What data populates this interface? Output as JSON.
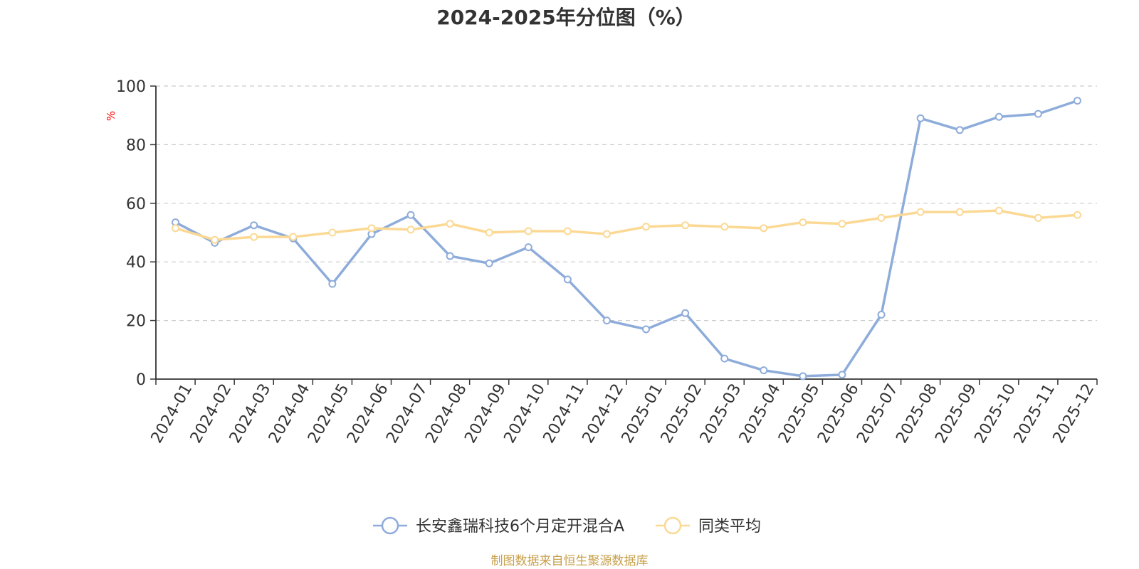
{
  "chart_data": {
    "type": "line",
    "title": "2024-2025年分位图（%）",
    "ylabel": "%",
    "xlabel": "",
    "ylim": [
      0,
      100
    ],
    "yticks": [
      0,
      20,
      40,
      60,
      80,
      100
    ],
    "grid": true,
    "legend_position": "bottom-center",
    "categories": [
      "2024-01",
      "2024-02",
      "2024-03",
      "2024-04",
      "2024-05",
      "2024-06",
      "2024-07",
      "2024-08",
      "2024-09",
      "2024-10",
      "2024-11",
      "2024-12",
      "2025-01",
      "2025-02",
      "2025-03",
      "2025-04",
      "2025-05",
      "2025-06",
      "2025-07",
      "2025-08",
      "2025-09",
      "2025-10",
      "2025-11",
      "2025-12"
    ],
    "series": [
      {
        "name": "长安鑫瑞科技6个月定开混合A",
        "color": "#8eacda",
        "values": [
          53.5,
          46.5,
          52.5,
          48.0,
          32.5,
          49.5,
          56.0,
          42.0,
          39.5,
          45.0,
          34.0,
          20.0,
          17.0,
          22.5,
          7.0,
          3.0,
          1.0,
          1.5,
          22.0,
          89.0,
          85.0,
          89.5,
          90.5,
          95.0
        ]
      },
      {
        "name": "同类平均",
        "color": "#fbd994",
        "values": [
          51.5,
          47.5,
          48.5,
          48.5,
          50.0,
          51.5,
          51.0,
          53.0,
          50.0,
          50.5,
          50.5,
          49.5,
          52.0,
          52.5,
          52.0,
          51.5,
          53.5,
          53.0,
          55.0,
          57.0,
          57.0,
          57.5,
          55.0,
          56.0
        ]
      }
    ],
    "footer": "制图数据来自恒生聚源数据库",
    "colors": {
      "axis": "#333333",
      "grid": "#cccccc",
      "ylabel": "#ff0000",
      "footer": "#c7a04b",
      "tick_text": "#333333"
    }
  }
}
